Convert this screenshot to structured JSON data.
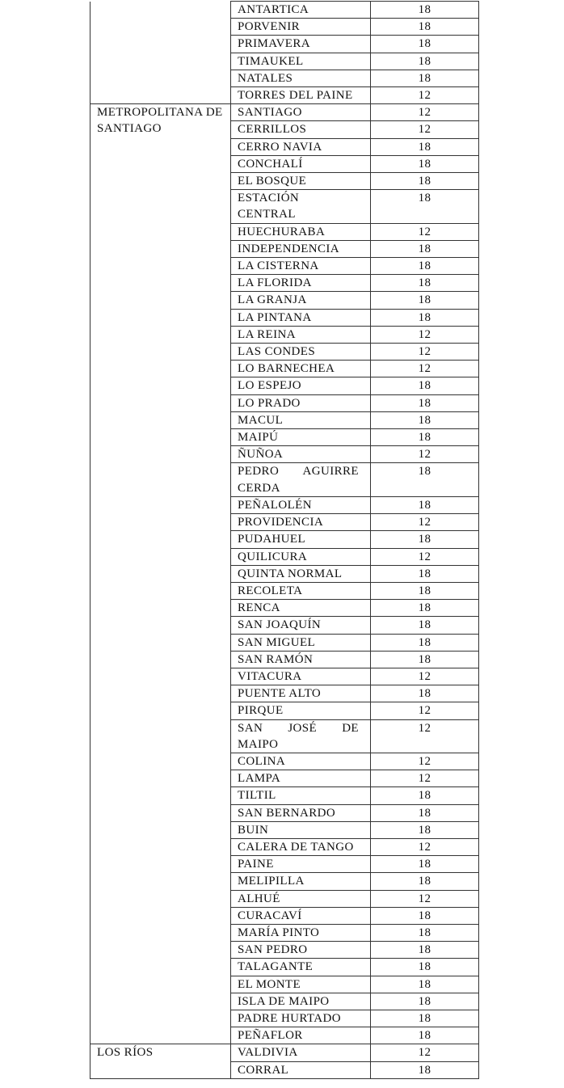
{
  "table": {
    "groups": [
      {
        "region": "",
        "rows": [
          {
            "comuna": "ANTARTICA",
            "value": "18"
          },
          {
            "comuna": "PORVENIR",
            "value": "18"
          },
          {
            "comuna": "PRIMAVERA",
            "value": "18"
          },
          {
            "comuna": "TIMAUKEL",
            "value": "18"
          },
          {
            "comuna": "NATALES",
            "value": "18"
          },
          {
            "comuna": "TORRES DEL PAINE",
            "value": "12"
          }
        ]
      },
      {
        "region": "METROPOLITANA DE SANTIAGO",
        "rows": [
          {
            "comuna": "SANTIAGO",
            "value": "12"
          },
          {
            "comuna": "CERRILLOS",
            "value": "12"
          },
          {
            "comuna": "CERRO NAVIA",
            "value": "18"
          },
          {
            "comuna": "CONCHALÍ",
            "value": "18"
          },
          {
            "comuna": "EL BOSQUE",
            "value": "18"
          },
          {
            "comuna": "ESTACIÓN CENTRAL",
            "value": "18"
          },
          {
            "comuna": "HUECHURABA",
            "value": "12"
          },
          {
            "comuna": "INDEPENDENCIA",
            "value": "18"
          },
          {
            "comuna": "LA CISTERNA",
            "value": "18"
          },
          {
            "comuna": "LA FLORIDA",
            "value": "18"
          },
          {
            "comuna": "LA GRANJA",
            "value": "18"
          },
          {
            "comuna": "LA PINTANA",
            "value": "18"
          },
          {
            "comuna": "LA REINA",
            "value": "12"
          },
          {
            "comuna": "LAS CONDES",
            "value": "12"
          },
          {
            "comuna": "LO BARNECHEA",
            "value": "12"
          },
          {
            "comuna": "LO ESPEJO",
            "value": "18"
          },
          {
            "comuna": "LO PRADO",
            "value": "18"
          },
          {
            "comuna": "MACUL",
            "value": "18"
          },
          {
            "comuna": "MAIPÚ",
            "value": "18"
          },
          {
            "comuna": "ÑUÑOA",
            "value": "12"
          },
          {
            "comuna": "PEDRO AGUIRRE CERDA",
            "value": "18"
          },
          {
            "comuna": "PEÑALOLÉN",
            "value": "18"
          },
          {
            "comuna": "PROVIDENCIA",
            "value": "12"
          },
          {
            "comuna": "PUDAHUEL",
            "value": "18"
          },
          {
            "comuna": "QUILICURA",
            "value": "12"
          },
          {
            "comuna": "QUINTA NORMAL",
            "value": "18"
          },
          {
            "comuna": "RECOLETA",
            "value": "18"
          },
          {
            "comuna": "RENCA",
            "value": "18"
          },
          {
            "comuna": "SAN JOAQUÍN",
            "value": "18"
          },
          {
            "comuna": "SAN MIGUEL",
            "value": "18"
          },
          {
            "comuna": "SAN RAMÓN",
            "value": "18"
          },
          {
            "comuna": "VITACURA",
            "value": "12"
          },
          {
            "comuna": "PUENTE ALTO",
            "value": "18"
          },
          {
            "comuna": "PIRQUE",
            "value": "12"
          },
          {
            "comuna": "SAN JOSÉ DE MAIPO",
            "value": "12"
          },
          {
            "comuna": "COLINA",
            "value": "12"
          },
          {
            "comuna": "LAMPA",
            "value": "12"
          },
          {
            "comuna": "TILTIL",
            "value": "18"
          },
          {
            "comuna": "SAN BERNARDO",
            "value": "18"
          },
          {
            "comuna": "BUIN",
            "value": "18"
          },
          {
            "comuna": "CALERA DE TANGO",
            "value": "12"
          },
          {
            "comuna": "PAINE",
            "value": "18"
          },
          {
            "comuna": "MELIPILLA",
            "value": "18"
          },
          {
            "comuna": "ALHUÉ",
            "value": "12"
          },
          {
            "comuna": "CURACAVÍ",
            "value": "18"
          },
          {
            "comuna": "MARÍA PINTO",
            "value": "18"
          },
          {
            "comuna": "SAN PEDRO",
            "value": "18"
          },
          {
            "comuna": "TALAGANTE",
            "value": "18"
          },
          {
            "comuna": "EL MONTE",
            "value": "18"
          },
          {
            "comuna": "ISLA DE MAIPO",
            "value": "18"
          },
          {
            "comuna": "PADRE HURTADO",
            "value": "18"
          },
          {
            "comuna": "PEÑAFLOR",
            "value": "18"
          }
        ]
      },
      {
        "region": "LOS RÍOS",
        "rows": [
          {
            "comuna": "VALDIVIA",
            "value": "12"
          },
          {
            "comuna": "CORRAL",
            "value": "18"
          }
        ]
      }
    ]
  }
}
